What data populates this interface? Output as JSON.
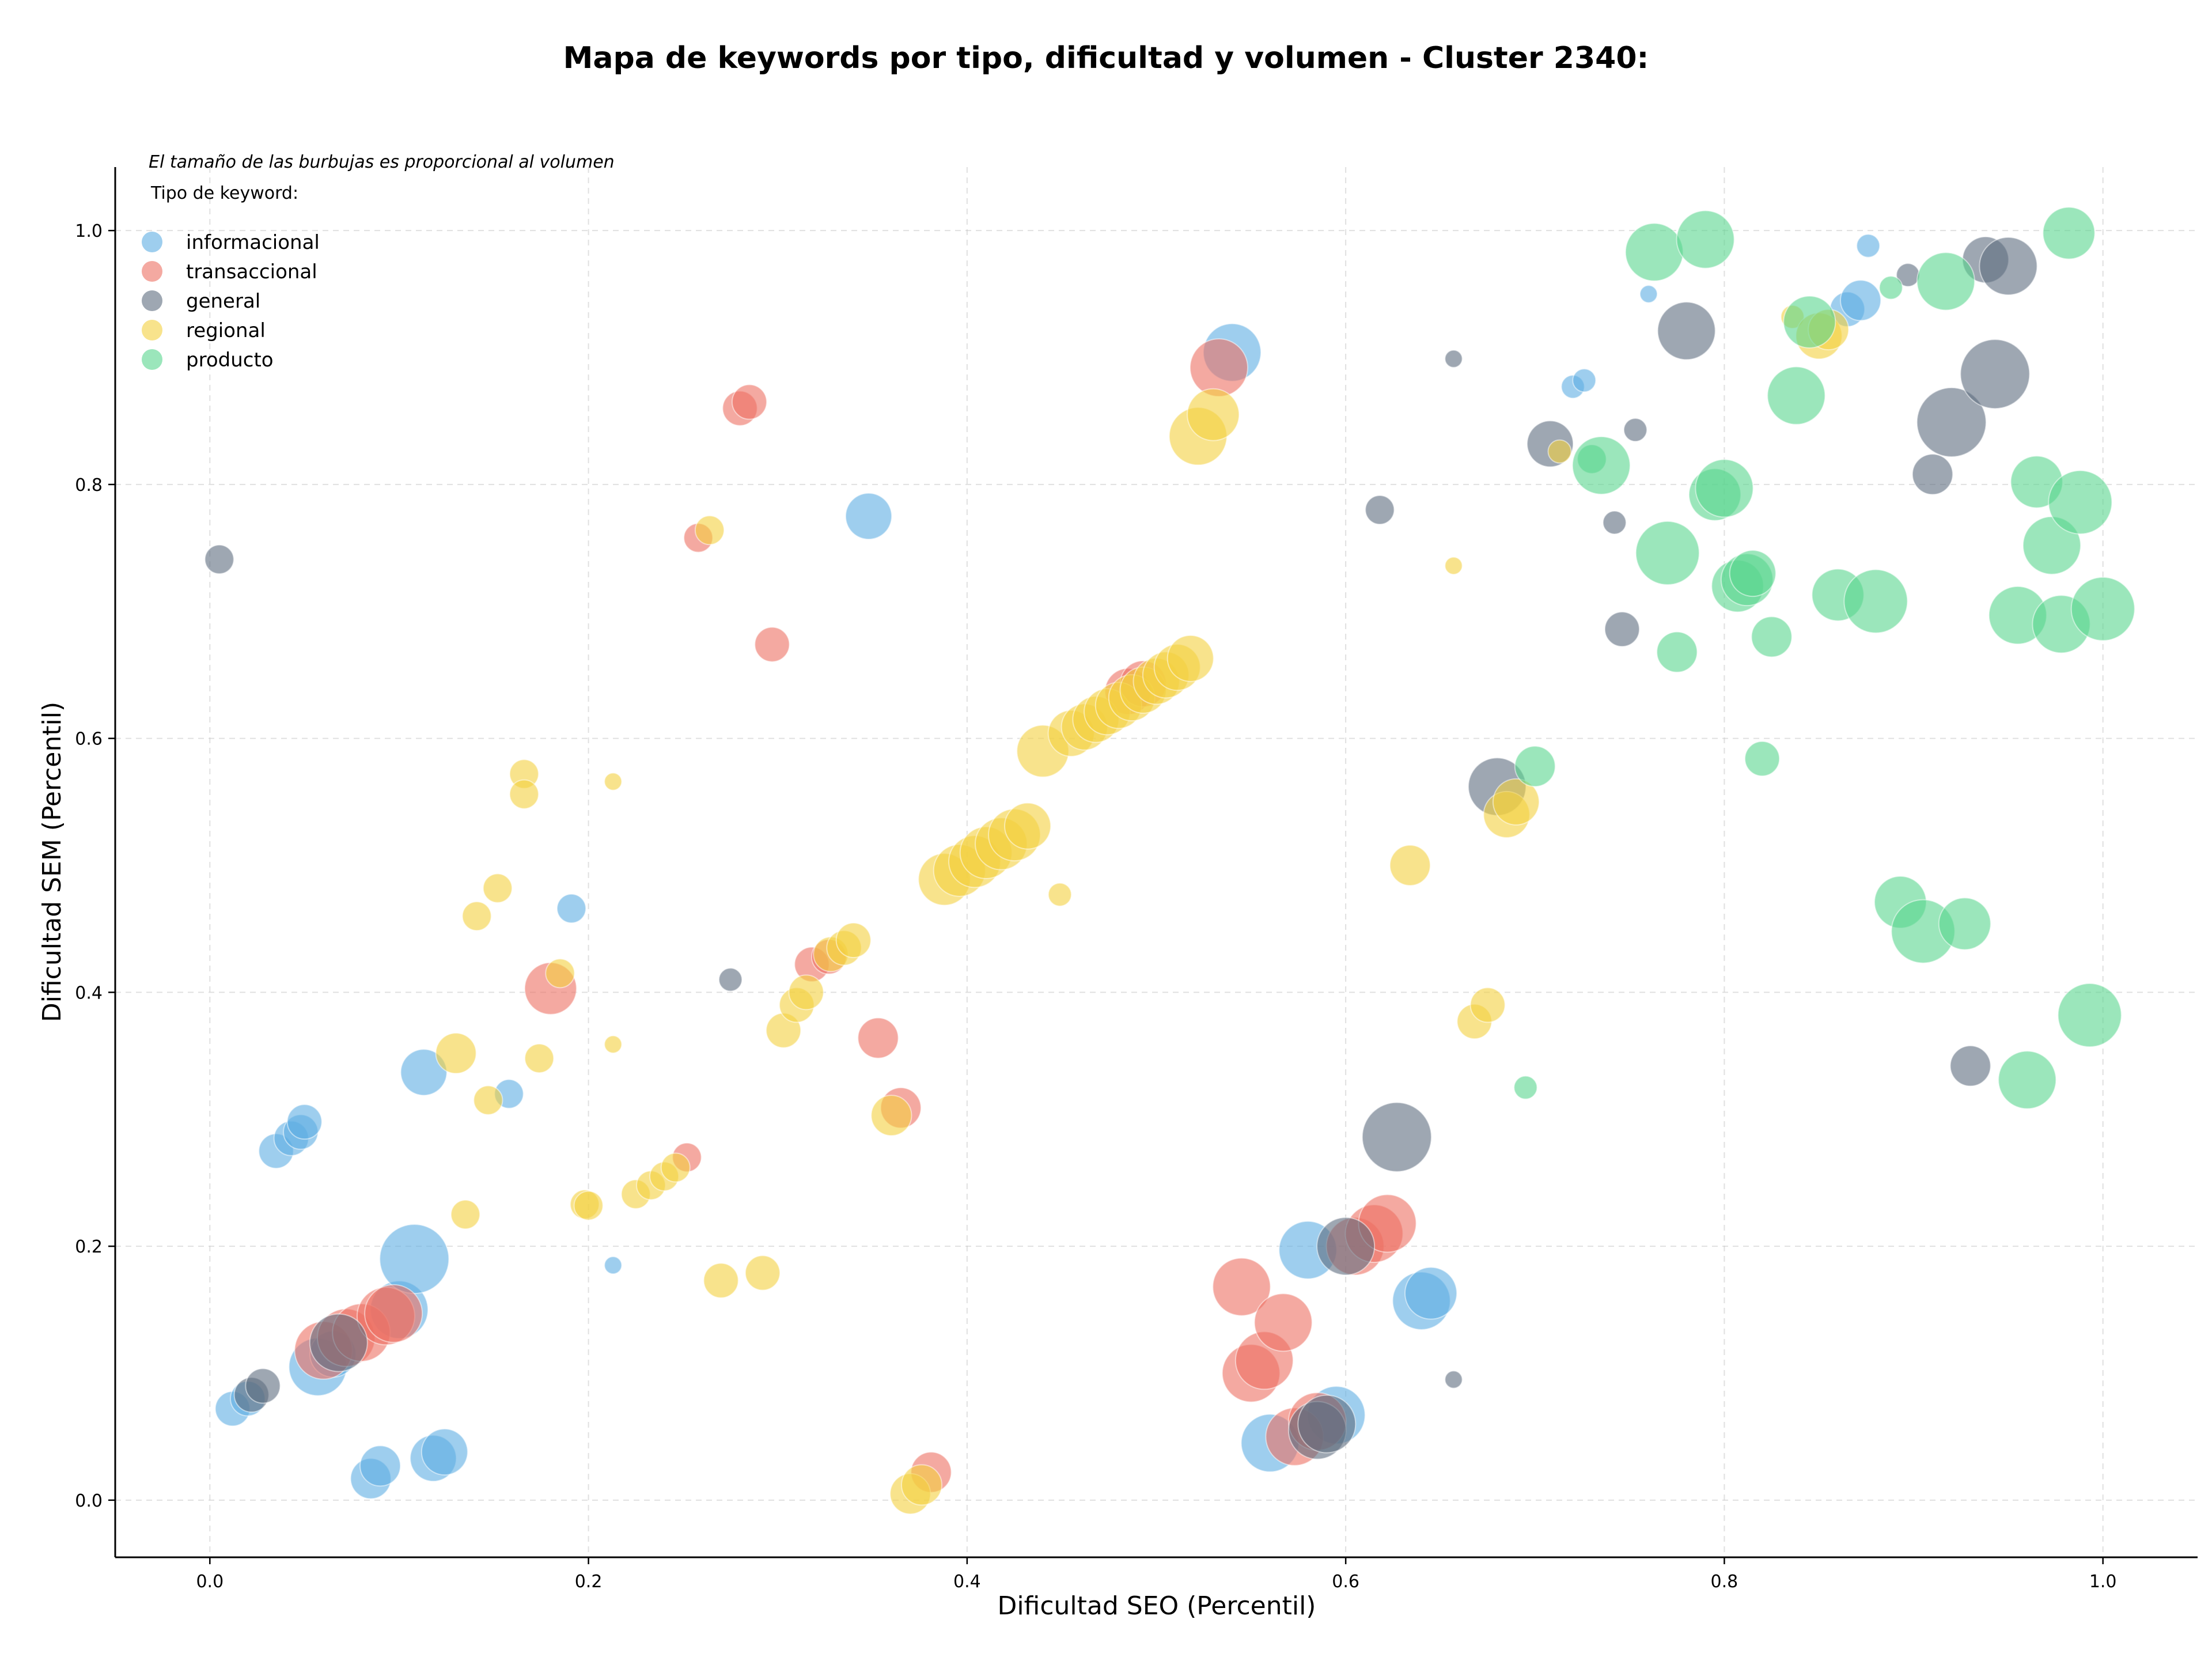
{
  "chart_data": {
    "type": "scatter",
    "title": "Mapa de keywords por tipo, dificultad y volumen - Cluster 2340:",
    "xlabel": "Dificultad SEO (Percentil)",
    "ylabel": "Dificultad SEM (Percentil)",
    "xlim": [
      -0.05,
      1.05
    ],
    "ylim": [
      -0.045,
      1.05
    ],
    "xticks": [
      "0.0",
      "0.2",
      "0.4",
      "0.6",
      "0.8",
      "1.0"
    ],
    "yticks": [
      "0.0",
      "0.2",
      "0.4",
      "0.6",
      "0.8",
      "1.0"
    ],
    "grid": true,
    "note": "El tamaño de las burbujas es proporcional al volumen",
    "legend": {
      "title": "Tipo de keyword:",
      "placement": "top-left"
    },
    "series": [
      {
        "name": "informacional",
        "color": "#5dade2",
        "points": [
          [
            0.012,
            0.072,
            3
          ],
          [
            0.02,
            0.08,
            3
          ],
          [
            0.035,
            0.275,
            3
          ],
          [
            0.043,
            0.285,
            3
          ],
          [
            0.048,
            0.29,
            3
          ],
          [
            0.05,
            0.298,
            3
          ],
          [
            0.057,
            0.105,
            5
          ],
          [
            0.065,
            0.115,
            4
          ],
          [
            0.085,
            0.017,
            3.5
          ],
          [
            0.09,
            0.027,
            3.5
          ],
          [
            0.1,
            0.15,
            5
          ],
          [
            0.108,
            0.19,
            6
          ],
          [
            0.113,
            0.337,
            4
          ],
          [
            0.118,
            0.033,
            4
          ],
          [
            0.124,
            0.038,
            4
          ],
          [
            0.158,
            0.32,
            2.5
          ],
          [
            0.191,
            0.466,
            2.5
          ],
          [
            0.213,
            0.185,
            1.5
          ],
          [
            0.348,
            0.775,
            4
          ],
          [
            0.54,
            0.904,
            5
          ],
          [
            0.56,
            0.045,
            5
          ],
          [
            0.58,
            0.197,
            5
          ],
          [
            0.595,
            0.067,
            5
          ],
          [
            0.64,
            0.157,
            5
          ],
          [
            0.645,
            0.163,
            4.5
          ],
          [
            0.72,
            0.877,
            2
          ],
          [
            0.726,
            0.882,
            2
          ],
          [
            0.76,
            0.95,
            1.5
          ],
          [
            0.865,
            0.938,
            3
          ],
          [
            0.872,
            0.945,
            3.5
          ],
          [
            0.876,
            0.988,
            2
          ]
        ]
      },
      {
        "name": "transaccional",
        "color": "#ec7063",
        "points": [
          [
            0.06,
            0.118,
            5
          ],
          [
            0.072,
            0.128,
            5
          ],
          [
            0.08,
            0.132,
            5
          ],
          [
            0.093,
            0.145,
            5
          ],
          [
            0.097,
            0.147,
            5
          ],
          [
            0.18,
            0.403,
            4.5
          ],
          [
            0.252,
            0.27,
            2.5
          ],
          [
            0.258,
            0.758,
            2.5
          ],
          [
            0.28,
            0.86,
            3
          ],
          [
            0.285,
            0.865,
            3
          ],
          [
            0.297,
            0.674,
            3
          ],
          [
            0.318,
            0.422,
            3
          ],
          [
            0.327,
            0.428,
            3
          ],
          [
            0.353,
            0.364,
            3.5
          ],
          [
            0.365,
            0.309,
            3.5
          ],
          [
            0.381,
            0.022,
            3.5
          ],
          [
            0.485,
            0.637,
            4
          ],
          [
            0.493,
            0.643,
            4
          ],
          [
            0.533,
            0.892,
            5
          ],
          [
            0.545,
            0.168,
            5
          ],
          [
            0.55,
            0.1,
            5
          ],
          [
            0.557,
            0.11,
            5
          ],
          [
            0.567,
            0.14,
            5
          ],
          [
            0.573,
            0.05,
            5
          ],
          [
            0.585,
            0.062,
            5
          ],
          [
            0.605,
            0.2,
            5
          ],
          [
            0.615,
            0.21,
            5
          ],
          [
            0.622,
            0.218,
            5
          ]
        ]
      },
      {
        "name": "general",
        "color": "#5d6d7e",
        "points": [
          [
            0.005,
            0.741,
            2.5
          ],
          [
            0.022,
            0.083,
            3
          ],
          [
            0.028,
            0.09,
            3
          ],
          [
            0.068,
            0.124,
            5
          ],
          [
            0.275,
            0.41,
            2
          ],
          [
            0.585,
            0.055,
            5
          ],
          [
            0.59,
            0.06,
            5
          ],
          [
            0.6,
            0.2,
            5
          ],
          [
            0.618,
            0.78,
            2.5
          ],
          [
            0.627,
            0.286,
            6
          ],
          [
            0.657,
            0.899,
            1.5
          ],
          [
            0.657,
            0.095,
            1.5
          ],
          [
            0.68,
            0.562,
            5
          ],
          [
            0.708,
            0.832,
            4
          ],
          [
            0.742,
            0.77,
            2
          ],
          [
            0.746,
            0.686,
            3
          ],
          [
            0.753,
            0.843,
            2
          ],
          [
            0.78,
            0.921,
            5
          ],
          [
            0.897,
            0.965,
            2
          ],
          [
            0.91,
            0.808,
            3.5
          ],
          [
            0.92,
            0.849,
            6
          ],
          [
            0.93,
            0.342,
            3.5
          ],
          [
            0.938,
            0.977,
            4
          ],
          [
            0.943,
            0.887,
            6
          ],
          [
            0.95,
            0.972,
            5
          ]
        ]
      },
      {
        "name": "regional",
        "color": "#f4d03f",
        "points": [
          [
            0.13,
            0.352,
            3.5
          ],
          [
            0.135,
            0.225,
            2.5
          ],
          [
            0.141,
            0.46,
            2.5
          ],
          [
            0.147,
            0.315,
            2.5
          ],
          [
            0.152,
            0.482,
            2.5
          ],
          [
            0.166,
            0.572,
            2.5
          ],
          [
            0.166,
            0.556,
            2.5
          ],
          [
            0.174,
            0.348,
            2.5
          ],
          [
            0.185,
            0.415,
            2.5
          ],
          [
            0.198,
            0.233,
            2.5
          ],
          [
            0.2,
            0.232,
            2.5
          ],
          [
            0.213,
            0.566,
            1.5
          ],
          [
            0.213,
            0.359,
            1.5
          ],
          [
            0.225,
            0.241,
            2.5
          ],
          [
            0.233,
            0.248,
            2.5
          ],
          [
            0.24,
            0.255,
            2.5
          ],
          [
            0.246,
            0.262,
            2.5
          ],
          [
            0.264,
            0.764,
            2.5
          ],
          [
            0.27,
            0.173,
            3
          ],
          [
            0.292,
            0.179,
            3
          ],
          [
            0.303,
            0.37,
            3
          ],
          [
            0.31,
            0.39,
            3
          ],
          [
            0.315,
            0.4,
            3
          ],
          [
            0.328,
            0.43,
            3
          ],
          [
            0.335,
            0.435,
            3
          ],
          [
            0.34,
            0.441,
            3
          ],
          [
            0.36,
            0.303,
            3.5
          ],
          [
            0.37,
            0.005,
            3.5
          ],
          [
            0.376,
            0.012,
            3.5
          ],
          [
            0.388,
            0.489,
            4.5
          ],
          [
            0.396,
            0.496,
            4.5
          ],
          [
            0.404,
            0.503,
            4.5
          ],
          [
            0.41,
            0.51,
            4.5
          ],
          [
            0.418,
            0.517,
            4.5
          ],
          [
            0.425,
            0.524,
            4.5
          ],
          [
            0.432,
            0.531,
            4
          ],
          [
            0.449,
            0.477,
            2
          ],
          [
            0.44,
            0.59,
            4.5
          ],
          [
            0.455,
            0.604,
            4
          ],
          [
            0.462,
            0.609,
            4
          ],
          [
            0.468,
            0.615,
            4
          ],
          [
            0.474,
            0.621,
            4
          ],
          [
            0.48,
            0.626,
            4
          ],
          [
            0.487,
            0.632,
            4
          ],
          [
            0.493,
            0.638,
            4
          ],
          [
            0.5,
            0.645,
            4
          ],
          [
            0.505,
            0.65,
            4
          ],
          [
            0.511,
            0.656,
            4
          ],
          [
            0.518,
            0.663,
            4
          ],
          [
            0.522,
            0.838,
            5
          ],
          [
            0.53,
            0.855,
            4.5
          ],
          [
            0.634,
            0.5,
            3.5
          ],
          [
            0.657,
            0.736,
            1.5
          ],
          [
            0.668,
            0.377,
            3
          ],
          [
            0.675,
            0.39,
            3
          ],
          [
            0.685,
            0.54,
            4
          ],
          [
            0.69,
            0.55,
            4
          ],
          [
            0.713,
            0.826,
            2
          ],
          [
            0.836,
            0.932,
            2
          ],
          [
            0.85,
            0.917,
            4
          ],
          [
            0.855,
            0.922,
            3.5
          ]
        ]
      },
      {
        "name": "producto",
        "color": "#58d68d",
        "points": [
          [
            0.695,
            0.325,
            2
          ],
          [
            0.7,
            0.578,
            3.5
          ],
          [
            0.73,
            0.82,
            2.5
          ],
          [
            0.735,
            0.815,
            5
          ],
          [
            0.763,
            0.983,
            5
          ],
          [
            0.77,
            0.746,
            5.5
          ],
          [
            0.775,
            0.668,
            3.5
          ],
          [
            0.79,
            0.993,
            5
          ],
          [
            0.795,
            0.792,
            4.5
          ],
          [
            0.8,
            0.797,
            5
          ],
          [
            0.807,
            0.72,
            4.5
          ],
          [
            0.812,
            0.725,
            4.5
          ],
          [
            0.815,
            0.73,
            4
          ],
          [
            0.82,
            0.584,
            3
          ],
          [
            0.825,
            0.68,
            3.5
          ],
          [
            0.838,
            0.87,
            5
          ],
          [
            0.845,
            0.928,
            4.5
          ],
          [
            0.86,
            0.713,
            4.5
          ],
          [
            0.88,
            0.708,
            5.5
          ],
          [
            0.888,
            0.955,
            2
          ],
          [
            0.893,
            0.471,
            4.5
          ],
          [
            0.905,
            0.448,
            5.5
          ],
          [
            0.917,
            0.96,
            5
          ],
          [
            0.927,
            0.454,
            4.5
          ],
          [
            0.955,
            0.697,
            5
          ],
          [
            0.96,
            0.331,
            5
          ],
          [
            0.965,
            0.802,
            4.5
          ],
          [
            0.973,
            0.752,
            5
          ],
          [
            0.978,
            0.69,
            5
          ],
          [
            0.982,
            0.998,
            4.5
          ],
          [
            0.988,
            0.786,
            5.5
          ],
          [
            0.993,
            0.382,
            5.5
          ],
          [
            1.0,
            0.702,
            5.5
          ]
        ]
      }
    ]
  }
}
